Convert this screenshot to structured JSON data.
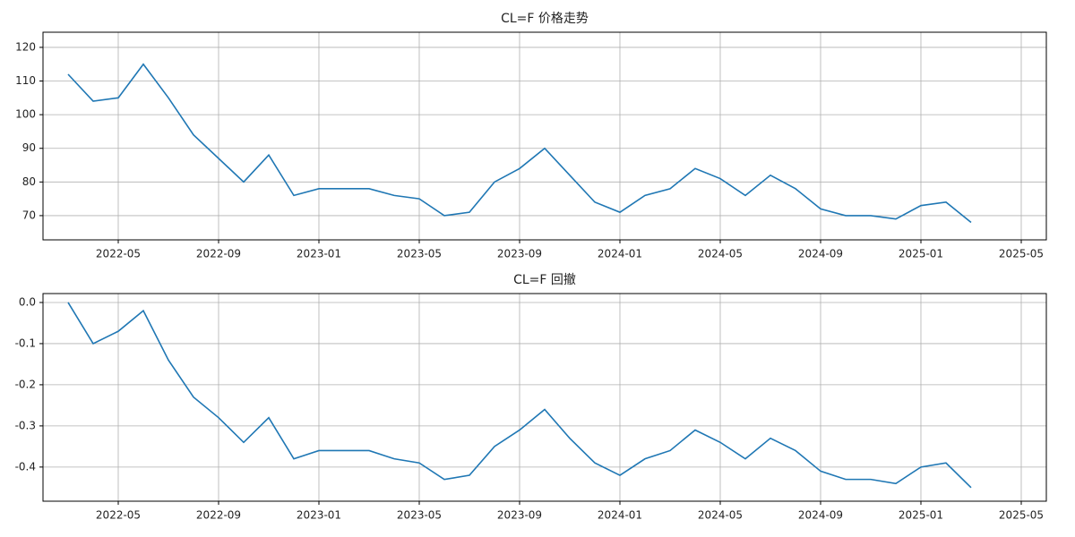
{
  "chart_data": [
    {
      "type": "line",
      "title": "CL=F 价格走势",
      "x": [
        "2022-03",
        "2022-04",
        "2022-05",
        "2022-06",
        "2022-07",
        "2022-08",
        "2022-09",
        "2022-10",
        "2022-11",
        "2022-12",
        "2023-01",
        "2023-02",
        "2023-03",
        "2023-04",
        "2023-05",
        "2023-06",
        "2023-07",
        "2023-08",
        "2023-09",
        "2023-10",
        "2023-11",
        "2023-12",
        "2024-01",
        "2024-02",
        "2024-03",
        "2024-04",
        "2024-05",
        "2024-06",
        "2024-07",
        "2024-08",
        "2024-09",
        "2024-10",
        "2024-11",
        "2024-12",
        "2025-01",
        "2025-02",
        "2025-03"
      ],
      "series": [
        {
          "color": "#1f77b4",
          "values": [
            112,
            104,
            105,
            115,
            105,
            94,
            87,
            80,
            88,
            76,
            78,
            78,
            78,
            76,
            75,
            70,
            71,
            80,
            84,
            90,
            82,
            74,
            71,
            76,
            78,
            84,
            81,
            76,
            82,
            78,
            72,
            70,
            70,
            69,
            73,
            74,
            68
          ]
        }
      ],
      "xlim": [
        "2022-02",
        "2025-06"
      ],
      "xticks": [
        "2022-05",
        "2022-09",
        "2023-01",
        "2023-05",
        "2023-09",
        "2024-01",
        "2024-05",
        "2024-09",
        "2025-01",
        "2025-05"
      ],
      "ylim": [
        62.8,
        124.5
      ],
      "yticks": [
        70,
        80,
        90,
        100,
        110,
        120
      ],
      "grid": true
    },
    {
      "type": "line",
      "title": "CL=F 回撤",
      "x": [
        "2022-03",
        "2022-04",
        "2022-05",
        "2022-06",
        "2022-07",
        "2022-08",
        "2022-09",
        "2022-10",
        "2022-11",
        "2022-12",
        "2023-01",
        "2023-02",
        "2023-03",
        "2023-04",
        "2023-05",
        "2023-06",
        "2023-07",
        "2023-08",
        "2023-09",
        "2023-10",
        "2023-11",
        "2023-12",
        "2024-01",
        "2024-02",
        "2024-03",
        "2024-04",
        "2024-05",
        "2024-06",
        "2024-07",
        "2024-08",
        "2024-09",
        "2024-10",
        "2024-11",
        "2024-12",
        "2025-01",
        "2025-02",
        "2025-03"
      ],
      "series": [
        {
          "color": "#1f77b4",
          "values": [
            0,
            -0.1,
            -0.07,
            -0.02,
            -0.14,
            -0.23,
            -0.28,
            -0.34,
            -0.28,
            -0.38,
            -0.36,
            -0.36,
            -0.36,
            -0.38,
            -0.39,
            -0.43,
            -0.42,
            -0.35,
            -0.31,
            -0.26,
            -0.33,
            -0.39,
            -0.42,
            -0.38,
            -0.36,
            -0.31,
            -0.34,
            -0.38,
            -0.33,
            -0.36,
            -0.41,
            -0.43,
            -0.43,
            -0.44,
            -0.4,
            -0.39,
            -0.45
          ]
        }
      ],
      "xlim": [
        "2022-02",
        "2025-06"
      ],
      "xticks": [
        "2022-05",
        "2022-09",
        "2023-01",
        "2023-05",
        "2023-09",
        "2024-01",
        "2024-05",
        "2024-09",
        "2025-01",
        "2025-05"
      ],
      "ylim": [
        -0.483,
        0.0217
      ],
      "yticks": [
        {
          "value": 0,
          "label": "0.0"
        },
        -0.1,
        -0.2,
        -0.3,
        -0.4
      ],
      "grid": true
    }
  ]
}
